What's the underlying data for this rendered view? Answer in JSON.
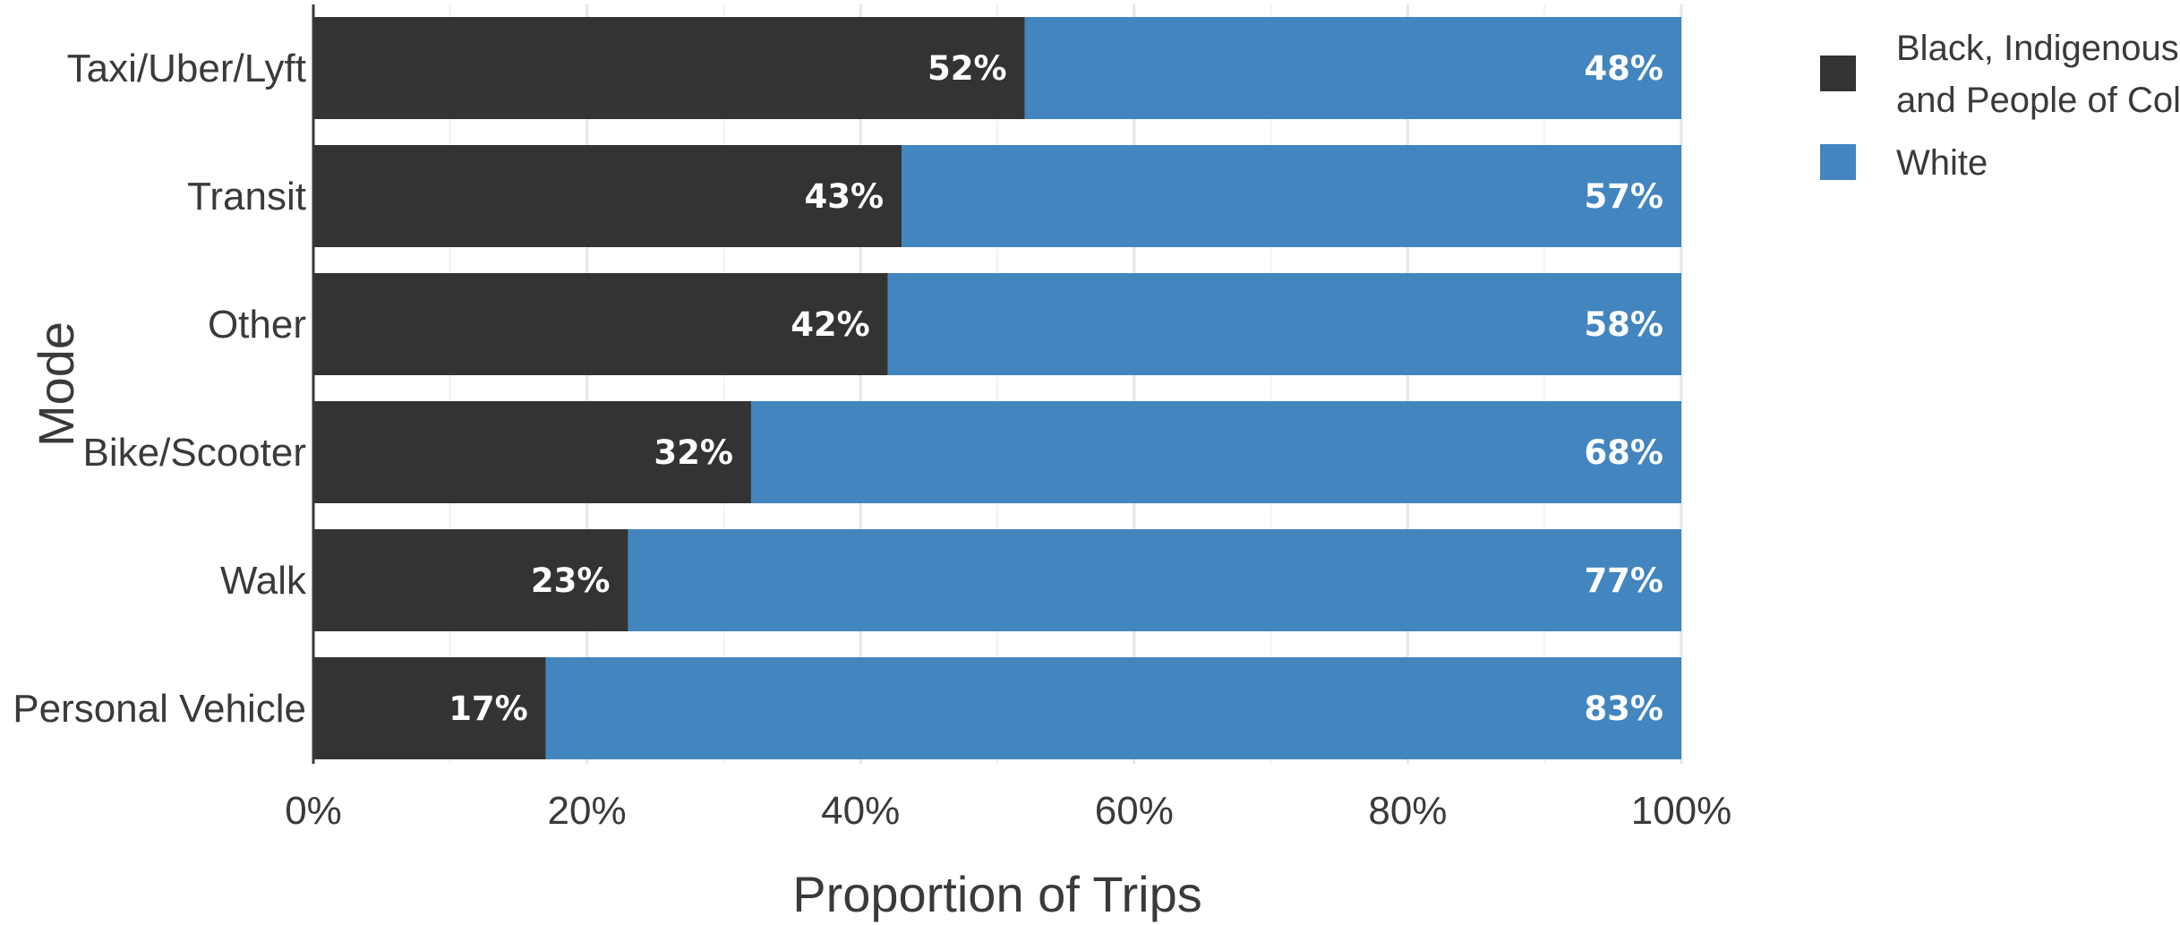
{
  "chart_data": {
    "type": "bar",
    "orientation": "horizontal",
    "stacked": true,
    "categories": [
      "Taxi/Uber/Lyft",
      "Transit",
      "Other",
      "Bike/Scooter",
      "Walk",
      "Personal Vehicle"
    ],
    "series": [
      {
        "name": "Black, Indigenous, and People of Color",
        "name_lines": [
          "Black, Indigenous,",
          "and People of Color"
        ],
        "color": "#333333",
        "values": [
          52,
          43,
          42,
          32,
          23,
          17
        ],
        "labels": [
          "52%",
          "43%",
          "42%",
          "32%",
          "23%",
          "17%"
        ]
      },
      {
        "name": "White",
        "name_lines": [
          "White"
        ],
        "color": "#4285bf",
        "values": [
          48,
          57,
          58,
          68,
          77,
          83
        ],
        "labels": [
          "48%",
          "57%",
          "58%",
          "68%",
          "77%",
          "83%"
        ]
      }
    ],
    "xlabel": "Proportion of Trips",
    "ylabel": "Mode",
    "xlim": [
      0,
      100
    ],
    "xticks": [
      0,
      20,
      40,
      60,
      80,
      100
    ],
    "xtick_labels": [
      "0%",
      "20%",
      "40%",
      "60%",
      "80%",
      "100%"
    ],
    "grid": true,
    "legend_position": "top-right"
  }
}
